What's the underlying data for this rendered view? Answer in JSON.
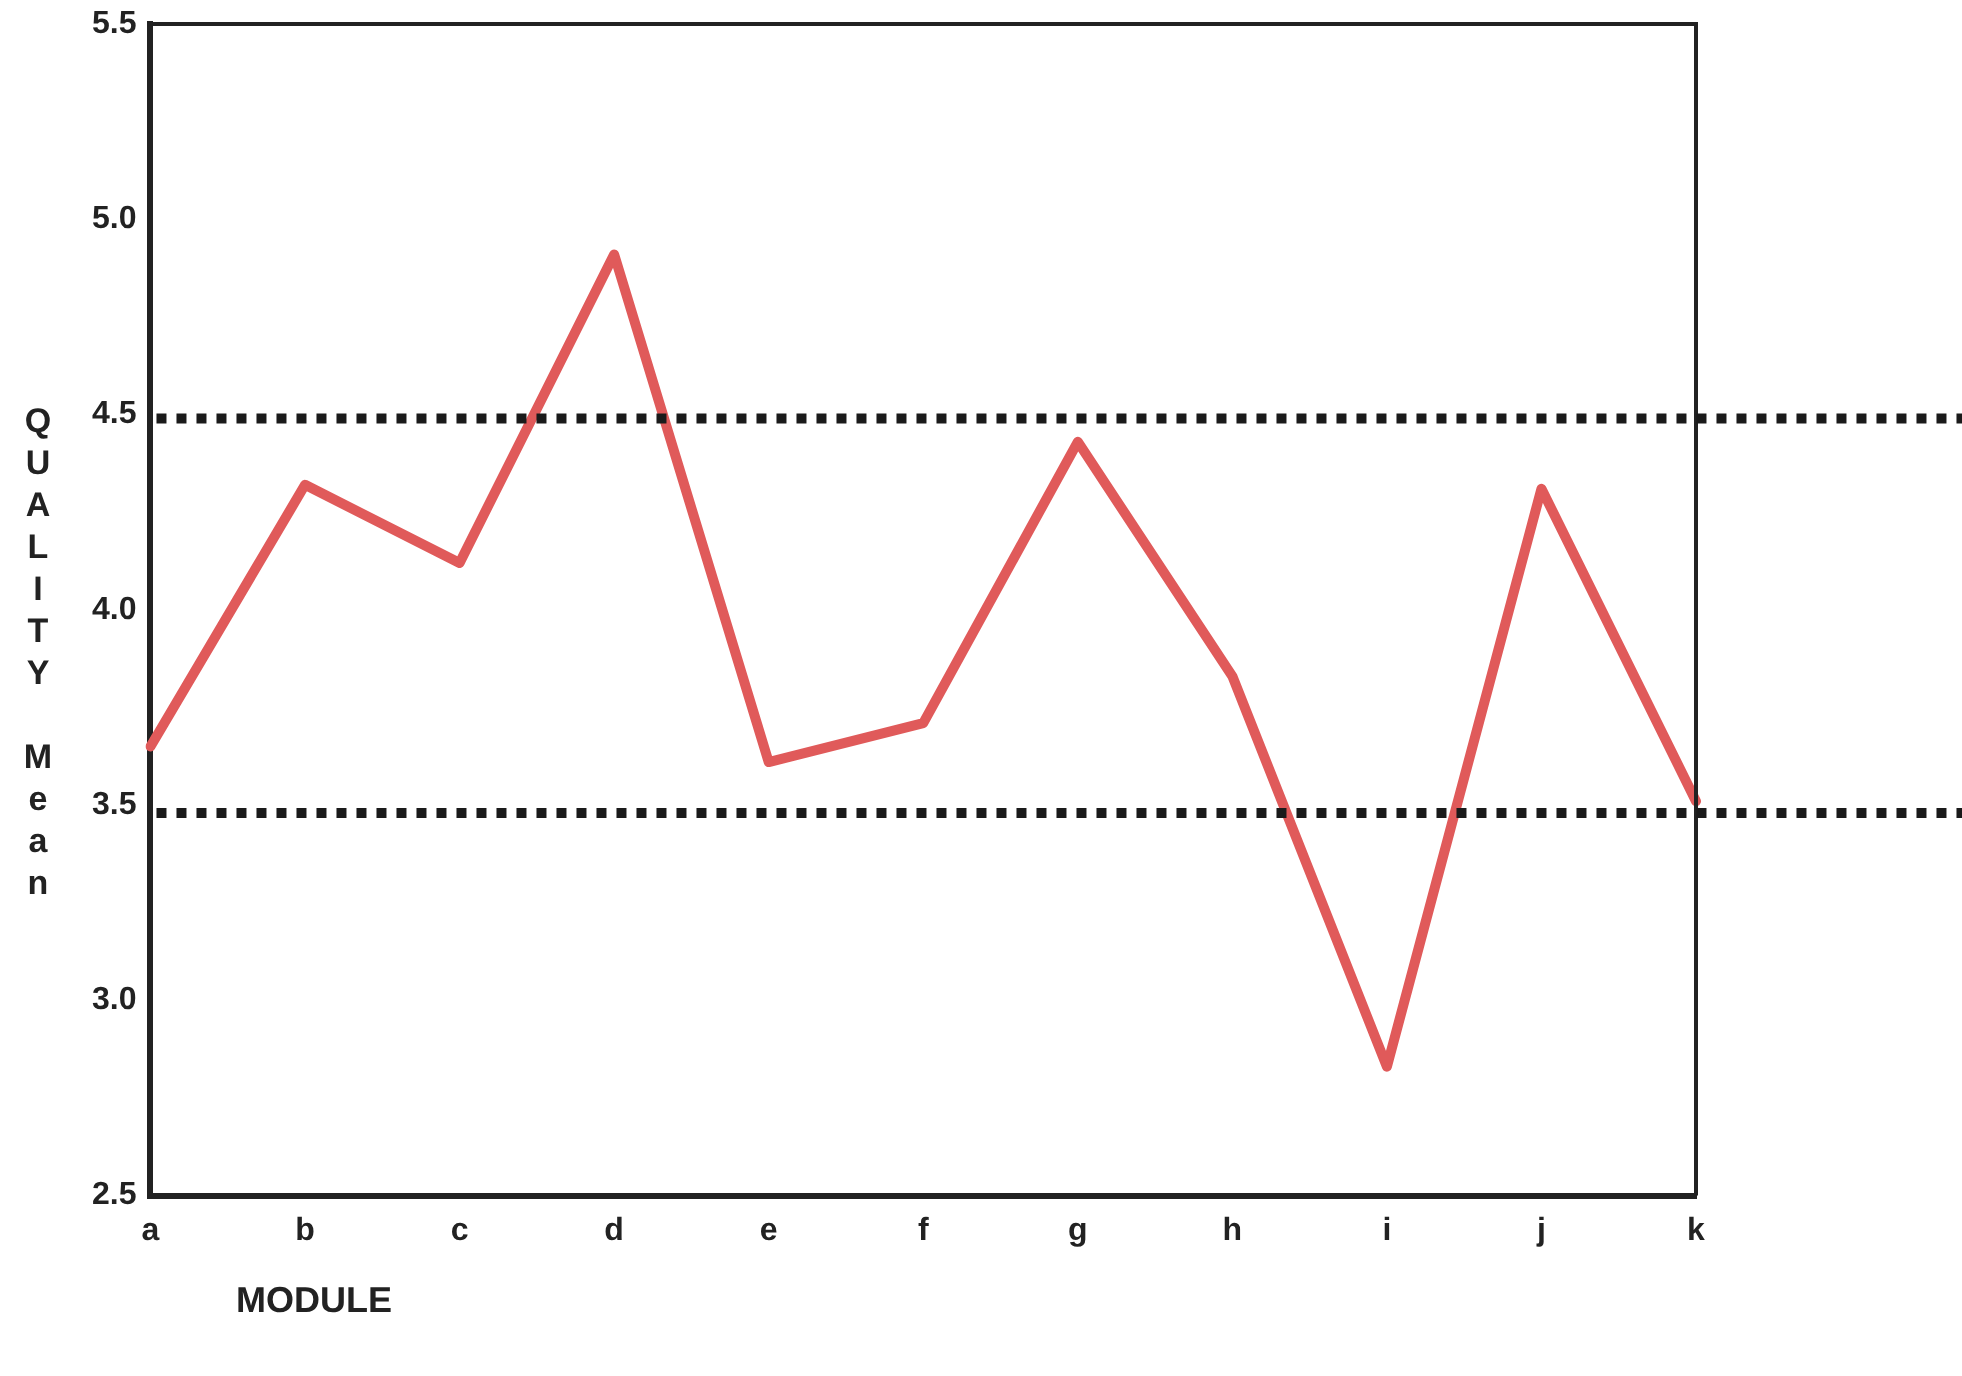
{
  "chart_data": {
    "type": "line",
    "xlabel": "MODULE",
    "ylabel": "QUALITY Mean",
    "categories": [
      "a",
      "b",
      "c",
      "d",
      "e",
      "f",
      "g",
      "h",
      "i",
      "j",
      "k"
    ],
    "series": [
      {
        "color": "#e05a5a",
        "values": [
          3.65,
          4.32,
          4.12,
          4.91,
          3.61,
          3.71,
          4.43,
          3.83,
          2.83,
          4.31,
          3.51
        ]
      }
    ],
    "ylim": [
      2.5,
      5.5
    ],
    "yticks": [
      {
        "value": 2.5,
        "label": "2.5"
      },
      {
        "value": 3,
        "label": "3.0"
      },
      {
        "value": 3.5,
        "label": "3.5"
      },
      {
        "value": 4,
        "label": "4.0"
      },
      {
        "value": 4.5,
        "label": "4.5"
      },
      {
        "value": 5,
        "label": "5.0"
      },
      {
        "value": 5.5,
        "label": "5.5"
      }
    ],
    "ref_lines": [
      {
        "axis": "y",
        "value": 4.49,
        "label": null,
        "color": "#1a1a1a",
        "line_style": "dotted"
      },
      {
        "axis": "y",
        "value": 3.48,
        "label": null,
        "color": "#1a1a1a",
        "line_style": "dotted"
      }
    ],
    "grid": false,
    "legend": false,
    "marker": "none",
    "line_style": "solid"
  }
}
